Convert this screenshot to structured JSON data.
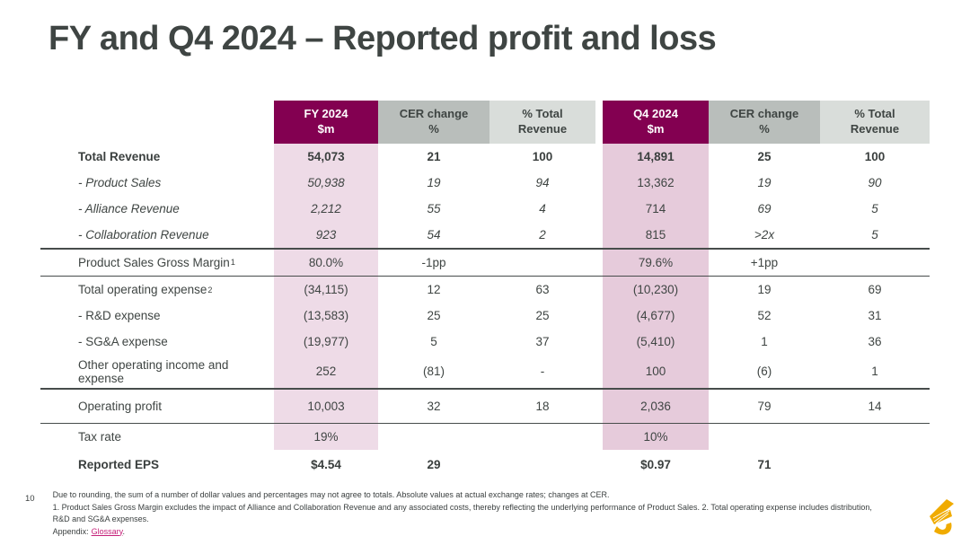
{
  "slide": {
    "title": "FY and Q4 2024 – Reported profit and loss",
    "page_number": "10"
  },
  "colors": {
    "mulberry": "#830051",
    "gold": "#F0AB00",
    "gray_mid": "#B9BEBB",
    "gray_light": "#D9DDDA",
    "pink_fy": "#EEDBE7",
    "pink_q4": "#E6CBDB",
    "text": "#3F4543",
    "rule": "#474C4B",
    "link": "#C52079"
  },
  "table": {
    "columns": [
      {
        "id": "fy-m",
        "line1": "FY 2024",
        "line2": "$m",
        "variant": "mulberry"
      },
      {
        "id": "fy-cer",
        "line1": "CER change",
        "line2": "%",
        "variant": "gray-mid"
      },
      {
        "id": "fy-rev",
        "line1": "% Total",
        "line2": "Revenue",
        "variant": "gray-light"
      },
      {
        "id": "q4-m",
        "line1": "Q4 2024",
        "line2": "$m",
        "variant": "mulberry"
      },
      {
        "id": "q4-cer",
        "line1": "CER change",
        "line2": "%",
        "variant": "gray-mid"
      },
      {
        "id": "q4-rev",
        "line1": "% Total",
        "line2": "Revenue",
        "variant": "gray-light"
      }
    ],
    "rows": [
      {
        "label": "Total Revenue",
        "sup": "",
        "emphasis": "bold",
        "pink": true,
        "rule_below": false,
        "cells": [
          "54,073",
          "21",
          "100",
          "14,891",
          "25",
          "100"
        ]
      },
      {
        "label": "- Product Sales",
        "sup": "",
        "emphasis": "italic",
        "pink": true,
        "rule_below": false,
        "cells": [
          "50,938",
          "19",
          "94",
          "13,362",
          "19",
          "90"
        ]
      },
      {
        "label": "- Alliance Revenue",
        "sup": "",
        "emphasis": "italic",
        "pink": true,
        "rule_below": false,
        "cells": [
          "2,212",
          "55",
          "4",
          "714",
          "69",
          "5"
        ]
      },
      {
        "label": "- Collaboration Revenue",
        "sup": "",
        "emphasis": "italic",
        "pink": true,
        "rule_below": true,
        "cells": [
          "923",
          "54",
          "2",
          "815",
          ">2x",
          "5"
        ]
      },
      {
        "label": "Product Sales Gross Margin",
        "sup": "1",
        "emphasis": "none",
        "pink": true,
        "rule_below": true,
        "cells": [
          "80.0%",
          "-1pp",
          "",
          "79.6%",
          "+1pp",
          ""
        ]
      },
      {
        "label": "Total operating expense",
        "sup": "2",
        "emphasis": "none",
        "pink": true,
        "rule_below": false,
        "cells": [
          "(34,115)",
          "12",
          "63",
          "(10,230)",
          "19",
          "69"
        ]
      },
      {
        "label": "- R&D expense",
        "sup": "",
        "emphasis": "none",
        "pink": true,
        "rule_below": false,
        "cells": [
          "(13,583)",
          "25",
          "25",
          "(4,677)",
          "52",
          "31"
        ]
      },
      {
        "label": "- SG&A expense",
        "sup": "",
        "emphasis": "none",
        "pink": true,
        "rule_below": false,
        "cells": [
          "(19,977)",
          "5",
          "37",
          "(5,410)",
          "1",
          "36"
        ]
      },
      {
        "label": "Other operating income and expense",
        "sup": "",
        "emphasis": "none",
        "pink": true,
        "rule_below": true,
        "cells": [
          "252",
          "(81)",
          "-",
          "100",
          "(6)",
          "1"
        ]
      },
      {
        "label": "Operating profit",
        "sup": "",
        "emphasis": "none",
        "pink": true,
        "rule_below": true,
        "cells": [
          "10,003",
          "32",
          "18",
          "2,036",
          "79",
          "14"
        ]
      },
      {
        "label": "Tax rate",
        "sup": "",
        "emphasis": "none",
        "pink": true,
        "rule_below": false,
        "cells": [
          "19%",
          "",
          "",
          "10%",
          "",
          ""
        ]
      },
      {
        "label": "Reported EPS",
        "sup": "",
        "emphasis": "bold",
        "pink": false,
        "rule_below": false,
        "cells": [
          "$4.54",
          "29",
          "",
          "$0.97",
          "71",
          ""
        ]
      }
    ]
  },
  "footer": {
    "notes": [
      "Due to rounding, the sum of a number of dollar values and percentages may not agree to totals. Absolute values at actual exchange rates; changes at CER.",
      "1. Product Sales Gross Margin excludes the impact of Alliance and Collaboration Revenue and any associated costs, thereby reflecting the underlying performance of Product Sales. 2. Total operating expense includes distribution, R&D and SG&A expenses."
    ],
    "appendix_label": "Appendix:",
    "appendix_link": "Glossary",
    "appendix_suffix": "."
  }
}
